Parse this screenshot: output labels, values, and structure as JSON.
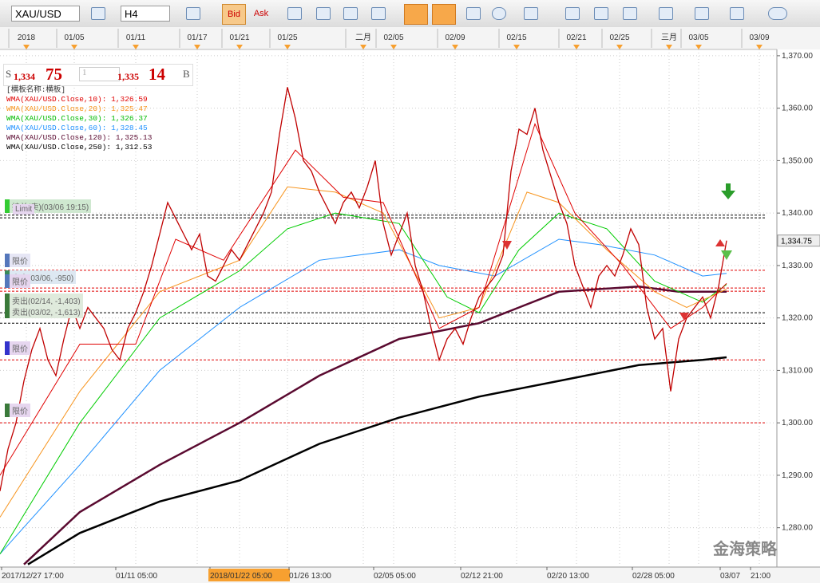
{
  "toolbar": {
    "symbol": "XAU/USD",
    "timeframe": "H4",
    "bid": "Bid",
    "ask": "Ask"
  },
  "quote": {
    "sell_tag": "S",
    "sell_big": "1,334",
    "sell_small": "75",
    "lots": "1",
    "buy_big": "1,335",
    "buy_small": "14",
    "buy_tag": "B"
  },
  "indicators": [
    {
      "text": "[横板名称:横板]",
      "color": "#333333"
    },
    {
      "text": "WMA(XAU/USD.Close,10): 1,326.59",
      "color": "#e00000"
    },
    {
      "text": "WMA(XAU/USD.Close,20): 1,325.47",
      "color": "#f7941d"
    },
    {
      "text": "WMA(XAU/USD.Close,30): 1,326.37",
      "color": "#00bb00"
    },
    {
      "text": "WMA(XAU/USD.Close,60): 1,328.45",
      "color": "#1e90ff"
    },
    {
      "text": "WMA(XAU/USD.Close,120): 1,325.13",
      "color": "#5a0a30"
    },
    {
      "text": "WMA(XAU/USD.Close,250): 1,312.53",
      "color": "#000000"
    }
  ],
  "order_labels": [
    "持单(卖)(03/06 19:15)",
    "Limit",
    "限价",
    "卖出(03/06, -950)",
    "限价",
    "卖出(02/14, -1,403)",
    "卖出(03/02, -1,613)",
    "限价",
    "限价"
  ],
  "watermark": "金海策略",
  "chart_data": {
    "type": "line",
    "xlim": [
      0,
      97.1
    ],
    "ylim": [
      1272.5,
      1371.2
    ],
    "yticks": [
      {
        "value": 1280,
        "label": "1,280.00"
      },
      {
        "value": 1290,
        "label": "1,290.00"
      },
      {
        "value": 1300,
        "label": "1,300.00"
      },
      {
        "value": 1310,
        "label": "1,310.00"
      },
      {
        "value": 1320,
        "label": "1,320.00"
      },
      {
        "value": 1330,
        "label": "1,330.00"
      },
      {
        "value": 1340,
        "label": "1,340.00"
      },
      {
        "value": 1350,
        "label": "1,350.00"
      },
      {
        "value": 1360,
        "label": "1,360.00"
      },
      {
        "value": 1370,
        "label": "1,370.00"
      }
    ],
    "top_ticks": [
      {
        "value": 3.3,
        "label": "2018"
      },
      {
        "value": 9.3,
        "label": "01/05"
      },
      {
        "value": 17,
        "label": "01/11"
      },
      {
        "value": 24.7,
        "label": "01/17"
      },
      {
        "value": 30,
        "label": "01/21"
      },
      {
        "value": 36,
        "label": "01/25"
      },
      {
        "value": 45.5,
        "label": "二月"
      },
      {
        "value": 49.3,
        "label": "02/05"
      },
      {
        "value": 57,
        "label": "02/09"
      },
      {
        "value": 64.7,
        "label": "02/15"
      },
      {
        "value": 72.2,
        "label": "02/21"
      },
      {
        "value": 77.6,
        "label": "02/25"
      },
      {
        "value": 83.8,
        "label": "三月"
      },
      {
        "value": 87.5,
        "label": "03/05"
      },
      {
        "value": 95.1,
        "label": "03/09"
      }
    ],
    "xticks": [
      {
        "value": 0.2,
        "label": "2017/12/27 17:00"
      },
      {
        "value": 14.5,
        "label": "01/11 05:00"
      },
      {
        "value": 26.3,
        "label": "2018/01/22 05:00"
      },
      {
        "value": 36.2,
        "label": "01/26 13:00"
      },
      {
        "value": 46.8,
        "label": "02/05 05:00"
      },
      {
        "value": 57.7,
        "label": "02/12 21:00"
      },
      {
        "value": 68.5,
        "label": "02/20 13:00"
      },
      {
        "value": 79.2,
        "label": "02/28 05:00"
      },
      {
        "value": 90.2,
        "label": "03/07"
      },
      {
        "value": 94,
        "label": "21:00"
      }
    ],
    "highlight_xtick": 2,
    "grid": true,
    "last_price": {
      "value": 1334.75,
      "label": "1,334.75"
    },
    "levels": [
      {
        "value": 1339.6,
        "color": "#000000"
      },
      {
        "value": 1339.1,
        "color": "#000000"
      },
      {
        "value": 1329.1,
        "color": "#e00000"
      },
      {
        "value": 1325.7,
        "color": "#e00000"
      },
      {
        "value": 1325.1,
        "color": "#e00000"
      },
      {
        "value": 1321,
        "color": "#000000"
      },
      {
        "value": 1319,
        "color": "#000000"
      },
      {
        "value": 1312,
        "color": "#e00000"
      },
      {
        "value": 1300,
        "color": "#e00000"
      }
    ],
    "series": [
      {
        "color": "#c00000",
        "width": 1.3,
        "x": [
          0,
          1,
          2,
          3,
          4,
          5,
          6,
          7,
          8,
          9,
          10,
          11,
          12,
          13,
          14,
          15,
          16,
          17,
          18,
          19,
          20,
          21,
          22,
          23,
          24,
          25,
          26,
          27,
          28,
          29,
          30,
          31,
          32,
          33,
          34,
          35,
          36,
          37,
          38,
          39,
          40,
          41,
          42,
          43,
          44,
          45,
          46,
          47,
          48,
          49,
          50,
          51,
          52,
          53,
          54,
          55,
          56,
          57,
          58,
          59,
          60,
          61,
          62,
          63,
          64,
          65,
          66,
          67,
          68,
          69,
          70,
          71,
          72,
          73,
          74,
          75,
          76,
          77,
          78,
          79,
          80,
          81,
          82,
          83,
          84,
          85,
          86,
          87,
          88,
          89,
          90,
          91
        ],
        "values": [
          1287,
          1295,
          1300,
          1308,
          1314,
          1318,
          1312,
          1309,
          1316,
          1322,
          1318,
          1322,
          1320,
          1318,
          1314,
          1312,
          1318,
          1321,
          1325,
          1330,
          1336,
          1342,
          1339,
          1336,
          1333,
          1336,
          1328,
          1327,
          1330,
          1333,
          1331,
          1334,
          1337,
          1340,
          1344,
          1355,
          1364,
          1358,
          1350,
          1348,
          1344,
          1341,
          1338,
          1342,
          1344,
          1341,
          1345,
          1350,
          1338,
          1332,
          1336,
          1340,
          1330,
          1325,
          1318,
          1312,
          1316,
          1318,
          1315,
          1320,
          1324,
          1326,
          1328,
          1332,
          1348,
          1356,
          1355,
          1360,
          1352,
          1347,
          1342,
          1338,
          1330,
          1326,
          1322,
          1328,
          1330,
          1328,
          1332,
          1337,
          1334,
          1322,
          1316,
          1318,
          1306,
          1316,
          1320,
          1322,
          1324,
          1320,
          1326,
          1334.75
        ]
      },
      {
        "color": "#e00000",
        "width": 1,
        "x": [
          0,
          10,
          17,
          22,
          28,
          37,
          43,
          48,
          55,
          60,
          67,
          72,
          78,
          84,
          88,
          91
        ],
        "values": [
          1290,
          1315,
          1315,
          1335,
          1331,
          1352,
          1343,
          1342,
          1318,
          1322,
          1357,
          1340,
          1330,
          1318,
          1322,
          1326.6
        ]
      },
      {
        "color": "#f7941d",
        "width": 1,
        "x": [
          0,
          10,
          20,
          30,
          36,
          42,
          48,
          55,
          60,
          66,
          70,
          76,
          82,
          86,
          91
        ],
        "values": [
          1282,
          1306,
          1325,
          1331,
          1345,
          1344,
          1340,
          1320,
          1322,
          1344,
          1342,
          1333,
          1325,
          1322,
          1325.5
        ]
      },
      {
        "color": "#00cc00",
        "width": 1,
        "x": [
          0,
          10,
          20,
          30,
          36,
          42,
          50,
          56,
          60,
          65,
          70,
          76,
          82,
          88,
          91
        ],
        "values": [
          1275,
          1300,
          1320,
          1329,
          1337,
          1340,
          1338,
          1324,
          1321,
          1333,
          1340,
          1337,
          1327,
          1323,
          1326.4
        ]
      },
      {
        "color": "#1e90ff",
        "width": 1,
        "x": [
          0,
          10,
          20,
          30,
          40,
          50,
          55,
          62,
          70,
          75,
          82,
          88,
          91
        ],
        "values": [
          1275,
          1292,
          1310,
          1322,
          1331,
          1333,
          1330,
          1328,
          1335,
          1334,
          1332,
          1328,
          1328.5
        ]
      },
      {
        "color": "#5a0a30",
        "width": 2.5,
        "x": [
          3,
          10,
          20,
          30,
          40,
          50,
          60,
          65,
          70,
          80,
          85,
          91
        ],
        "values": [
          1273,
          1283,
          1292,
          1300,
          1309,
          1316,
          1319,
          1322,
          1325,
          1326,
          1325,
          1325
        ]
      },
      {
        "color": "#000000",
        "width": 2.5,
        "x": [
          3.5,
          10,
          20,
          30,
          40,
          50,
          60,
          70,
          80,
          88,
          91
        ],
        "values": [
          1273,
          1279,
          1285,
          1289,
          1296,
          1301,
          1305,
          1308,
          1311,
          1312,
          1312.5
        ]
      }
    ]
  }
}
